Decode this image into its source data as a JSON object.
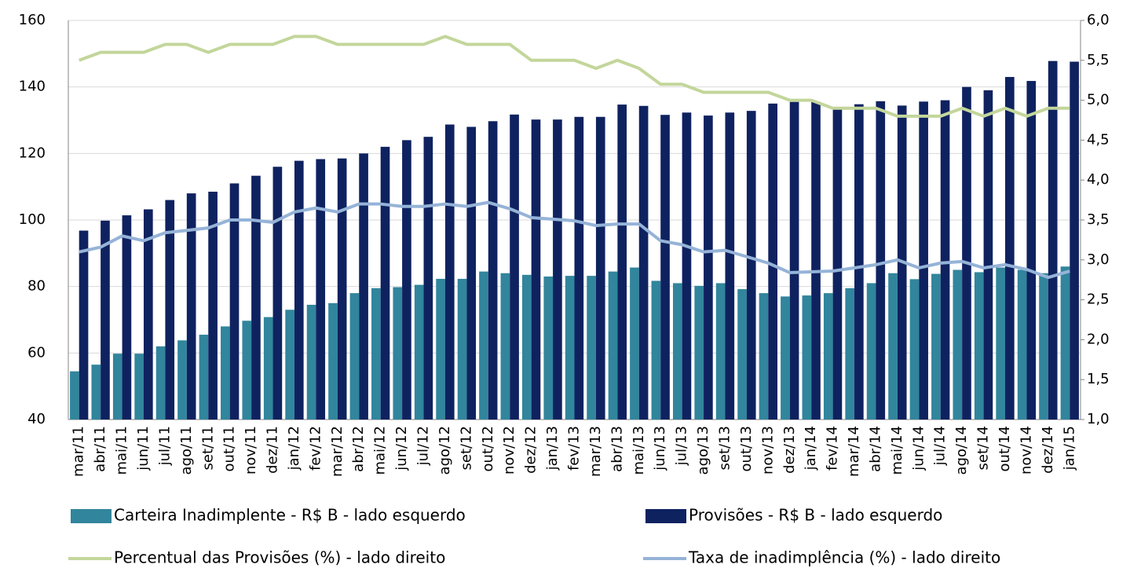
{
  "chart_data": {
    "type": "bar-line",
    "categories": [
      "mar/11",
      "abr/11",
      "mai/11",
      "jun/11",
      "jul/11",
      "ago/11",
      "set/11",
      "out/11",
      "nov/11",
      "dez/11",
      "jan/12",
      "fev/12",
      "mar/12",
      "abr/12",
      "mai/12",
      "jun/12",
      "jul/12",
      "ago/12",
      "set/12",
      "out/12",
      "nov/12",
      "dez/12",
      "jan/13",
      "fev/13",
      "mar/13",
      "abr/13",
      "mai/13",
      "jun/13",
      "jul/13",
      "ago/13",
      "set/13",
      "out/13",
      "nov/13",
      "dez/13",
      "jan/14",
      "fev/14",
      "mar/14",
      "abr/14",
      "mai/14",
      "jun/14",
      "jul/14",
      "ago/14",
      "set/14",
      "out/14",
      "nov/14",
      "dez/14",
      "jan/15"
    ],
    "series": [
      {
        "name": "Carteira Inadimplente - R$ B - lado esquerdo",
        "type": "bar",
        "color": "#31859c",
        "values": [
          54.5,
          56.5,
          59.8,
          59.8,
          62,
          63.8,
          65.5,
          68,
          69.7,
          70.8,
          73,
          74.5,
          75,
          78,
          79.5,
          79.8,
          80.5,
          82.3,
          82.3,
          84.5,
          84,
          83.5,
          83,
          83.2,
          83.2,
          84.5,
          85.7,
          81.7,
          81,
          80.2,
          81,
          79.2,
          78,
          77,
          77.3,
          78,
          79.5,
          81,
          84,
          82.2,
          83.8,
          85,
          84.3,
          85.7,
          85,
          84,
          86
        ]
      },
      {
        "name": "Provisões - R$ B - lado esquerdo",
        "type": "bar",
        "color": "#0f2260",
        "values": [
          96.8,
          99.8,
          101.4,
          103.2,
          106,
          108,
          108.5,
          111,
          113.3,
          116,
          117.8,
          118.3,
          118.5,
          120,
          122,
          124,
          125,
          128.7,
          128,
          129.7,
          131.7,
          130.2,
          130.2,
          131,
          131,
          134.7,
          134.3,
          131.6,
          132.3,
          131.4,
          132.3,
          132.8,
          135,
          135.5,
          135.5,
          133.4,
          134.8,
          135.7,
          134.4,
          135.6,
          136,
          140,
          139,
          143,
          141.8,
          147.8,
          147.6
        ]
      },
      {
        "name": "Percentual das Provisões (%) - lado direito",
        "type": "line",
        "axis": "y2",
        "color": "#c3d69b",
        "values": [
          5.5,
          5.6,
          5.6,
          5.6,
          5.7,
          5.7,
          5.6,
          5.7,
          5.7,
          5.7,
          5.8,
          5.8,
          5.7,
          5.7,
          5.7,
          5.7,
          5.7,
          5.8,
          5.7,
          5.7,
          5.7,
          5.5,
          5.5,
          5.5,
          5.4,
          5.5,
          5.4,
          5.2,
          5.2,
          5.1,
          5.1,
          5.1,
          5.1,
          5.0,
          5.0,
          4.9,
          4.9,
          4.9,
          4.8,
          4.8,
          4.8,
          4.9,
          4.8,
          4.9,
          4.8,
          4.9,
          4.9
        ]
      },
      {
        "name": "Taxa de inadimplência (%) - lado direito",
        "type": "line",
        "axis": "y2",
        "color": "#95b3d7",
        "values": [
          3.1,
          3.16,
          3.3,
          3.24,
          3.34,
          3.37,
          3.4,
          3.5,
          3.5,
          3.47,
          3.6,
          3.65,
          3.6,
          3.7,
          3.7,
          3.67,
          3.67,
          3.7,
          3.67,
          3.72,
          3.64,
          3.53,
          3.51,
          3.49,
          3.43,
          3.45,
          3.45,
          3.24,
          3.19,
          3.1,
          3.12,
          3.04,
          2.96,
          2.84,
          2.85,
          2.86,
          2.9,
          2.94,
          3.0,
          2.9,
          2.96,
          2.98,
          2.9,
          2.94,
          2.88,
          2.78,
          2.86
        ]
      }
    ],
    "ylim": [
      40,
      160
    ],
    "yticks": [
      40,
      60,
      80,
      100,
      120,
      140,
      160
    ],
    "y2lim": [
      1,
      6
    ],
    "y2ticks": [
      {
        "value": 1,
        "label": "1,0"
      },
      {
        "value": 1.5,
        "label": "1,5"
      },
      {
        "value": 2,
        "label": "2,0"
      },
      {
        "value": 2.5,
        "label": "2,5"
      },
      {
        "value": 3,
        "label": "3,0"
      },
      {
        "value": 3.5,
        "label": "3,5"
      },
      {
        "value": 4,
        "label": "4,0"
      },
      {
        "value": 4.5,
        "label": "4,5"
      },
      {
        "value": 5,
        "label": "5,0"
      },
      {
        "value": 5.5,
        "label": "5,5"
      },
      {
        "value": 6,
        "label": "6,0"
      }
    ],
    "grid": true
  }
}
